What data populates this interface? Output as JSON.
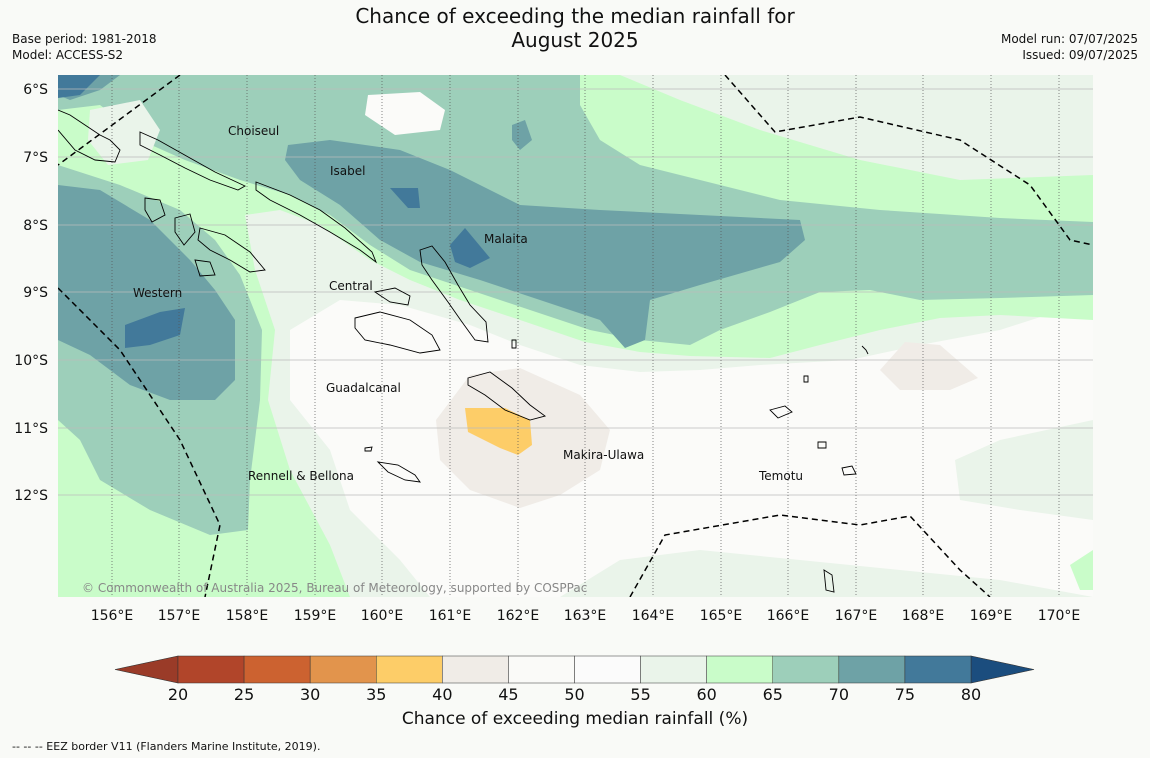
{
  "title": {
    "line1": "Chance of exceeding the median rainfall for",
    "line2": "August 2025"
  },
  "meta": {
    "base_period": "Base period: 1981-2018",
    "model": "Model: ACCESS-S2",
    "model_run": "Model run: 07/07/2025",
    "issued": "Issued: 09/07/2025"
  },
  "map": {
    "lat_labels": [
      "6°S",
      "7°S",
      "8°S",
      "9°S",
      "10°S",
      "11°S",
      "12°S"
    ],
    "lon_labels": [
      "156°E",
      "157°E",
      "158°E",
      "159°E",
      "160°E",
      "161°E",
      "162°E",
      "163°E",
      "164°E",
      "165°E",
      "166°E",
      "167°E",
      "168°E",
      "169°E",
      "170°E"
    ],
    "regions": [
      "Choiseul",
      "Isabel",
      "Malaita",
      "Western",
      "Central",
      "Guadalcanal",
      "Makira-Ulawa",
      "Rennell & Bellona",
      "Temotu"
    ],
    "credit": "© Commonwealth of Australia 2025, Bureau of Meteorology, supported by COSPPac"
  },
  "colorbar": {
    "ticks": [
      "20",
      "25",
      "30",
      "35",
      "40",
      "45",
      "50",
      "55",
      "60",
      "65",
      "70",
      "75",
      "80"
    ],
    "colors": [
      "#b1452a",
      "#cc6230",
      "#e2944c",
      "#fdcd68",
      "#f0ece7",
      "#fafaf8",
      "#fbfbfb",
      "#eaf4ea",
      "#c9fcc9",
      "#9dcfba",
      "#6ea2a6",
      "#42799a"
    ],
    "under_color": "#9a3b28",
    "over_color": "#1b4d7e",
    "label": "Chance of exceeding median rainfall (%)"
  },
  "footnote": "--  --  -- EEZ border V11 (Flanders Marine Institute, 2019)."
}
